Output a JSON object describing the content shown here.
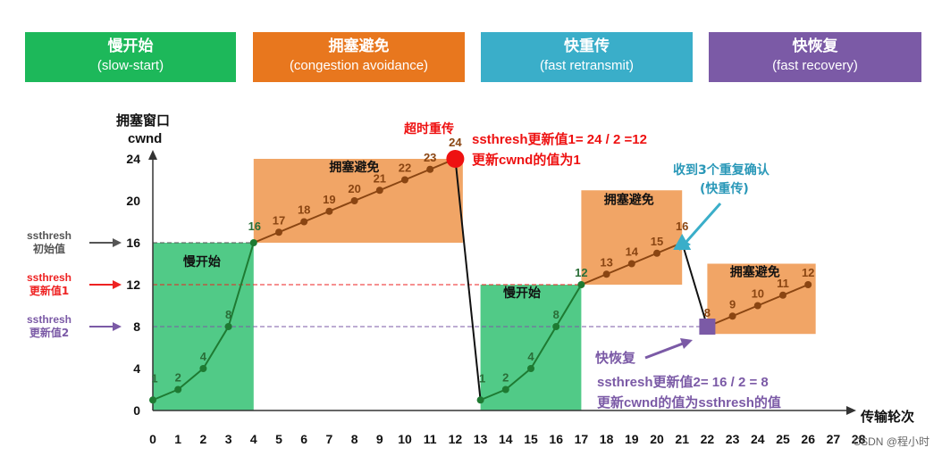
{
  "phases": [
    {
      "name": "慢开始",
      "en": "(slow-start)",
      "color": "#1db85a"
    },
    {
      "name": "拥塞避免",
      "en": "(congestion avoidance)",
      "color": "#e8771e"
    },
    {
      "name": "快重传",
      "en": "(fast retransmit)",
      "color": "#3aaec9"
    },
    {
      "name": "快恢复",
      "en": "(fast recovery)",
      "color": "#7b5aa6"
    }
  ],
  "axis": {
    "ylabel_line1": "拥塞窗口",
    "ylabel_line2": "cwnd",
    "xlabel": "传输轮次",
    "x_ticks": [
      0,
      1,
      2,
      3,
      4,
      5,
      6,
      7,
      8,
      9,
      10,
      11,
      12,
      13,
      14,
      15,
      16,
      17,
      18,
      19,
      20,
      21,
      22,
      23,
      24,
      25,
      26,
      27,
      28
    ],
    "y_ticks": [
      0,
      4,
      8,
      12,
      16,
      20,
      24
    ]
  },
  "thresholds": [
    {
      "label1": "ssthresh",
      "label2": "初始值",
      "value": 16,
      "color": "#555555"
    },
    {
      "label1": "ssthresh",
      "label2": "更新值1",
      "value": 12,
      "color": "#ee2222"
    },
    {
      "label1": "ssthresh",
      "label2": "更新值2",
      "value": 8,
      "color": "#7b5aa6"
    }
  ],
  "regions": [
    {
      "label": "慢开始",
      "type": "slow"
    },
    {
      "label": "拥塞避免",
      "type": "ca"
    },
    {
      "label": "慢开始",
      "type": "slow"
    },
    {
      "label": "拥塞避免",
      "type": "ca"
    },
    {
      "label": "拥塞避免",
      "type": "ca"
    }
  ],
  "annotations": {
    "timeout": "超时重传",
    "update1_line1": "ssthresh更新值1= 24 / 2 =12",
    "update1_line2": "更新cwnd的值为1",
    "dupack_line1": "收到3个重复确认",
    "dupack_line2": "(快重传)",
    "fastrecovery": "快恢复",
    "update2_line1": "ssthresh更新值2= 16 / 2 = 8",
    "update2_line2": "更新cwnd的值为ssthresh的值"
  },
  "chart_data": {
    "type": "line",
    "xlabel": "传输轮次",
    "ylabel": "拥塞窗口 cwnd",
    "xlim": [
      0,
      28
    ],
    "ylim": [
      0,
      24
    ],
    "x": [
      0,
      1,
      2,
      3,
      4,
      5,
      6,
      7,
      8,
      9,
      10,
      11,
      12,
      13,
      14,
      15,
      16,
      17,
      18,
      19,
      20,
      21,
      22,
      23,
      24,
      25,
      26
    ],
    "values": [
      1,
      2,
      4,
      8,
      16,
      17,
      18,
      19,
      20,
      21,
      22,
      23,
      24,
      1,
      2,
      4,
      8,
      12,
      13,
      14,
      15,
      16,
      8,
      9,
      10,
      11,
      12
    ]
  },
  "credit": "CSDN @程小时"
}
